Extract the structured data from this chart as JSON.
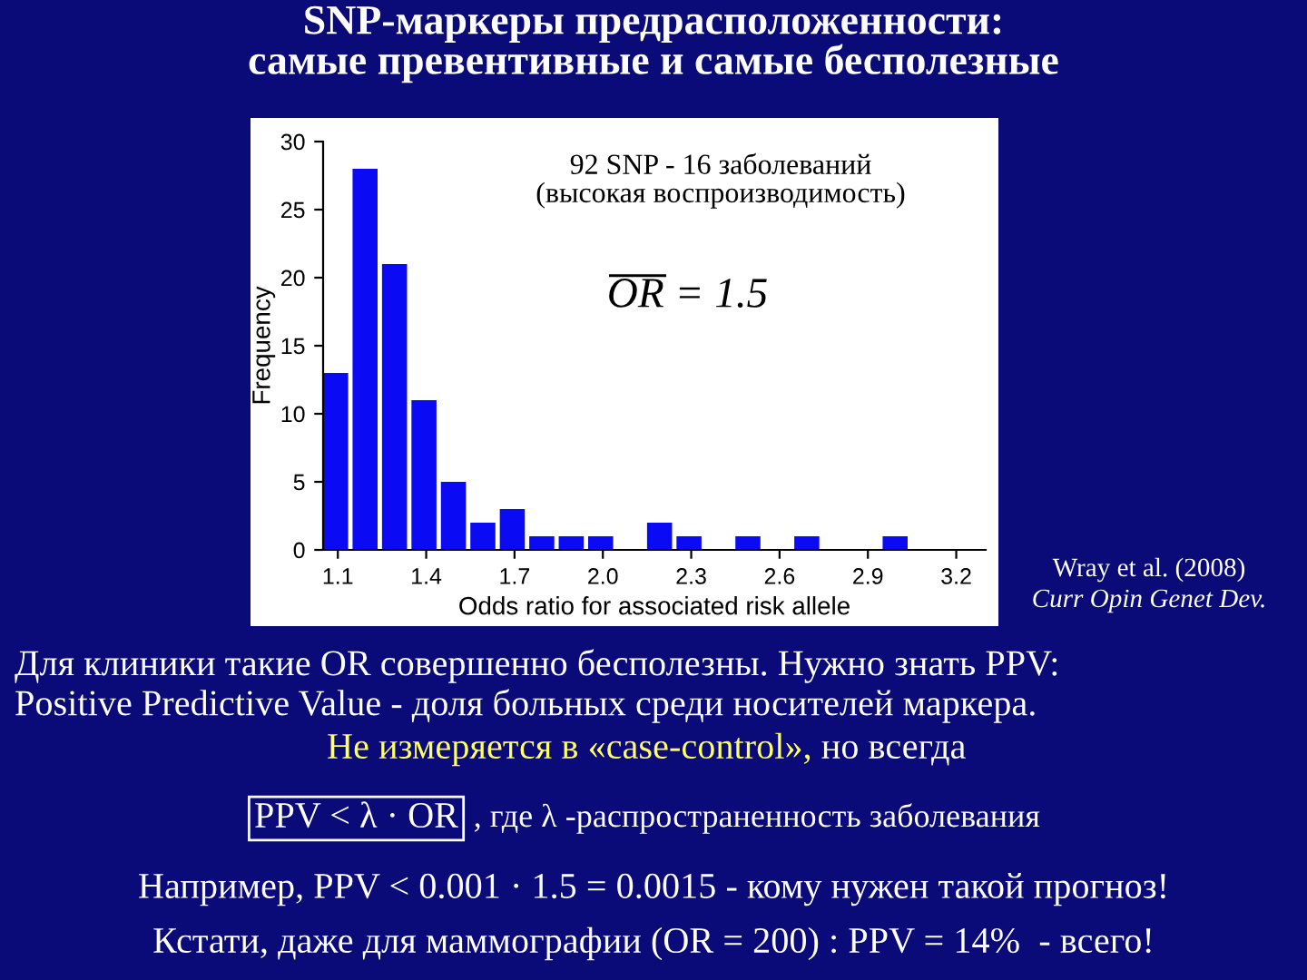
{
  "chart_data": {
    "type": "histogram",
    "title": "SNP-маркеры предрасположенности:\nсамые превентивные и самые бесполезные",
    "xlabel": "Odds ratio for associated risk allele",
    "ylabel": "Frequency",
    "bins": [
      1.05,
      1.15,
      1.25,
      1.35,
      1.45,
      1.55,
      1.65,
      1.75,
      1.85,
      1.95,
      2.05,
      2.15,
      2.25,
      2.35,
      2.45,
      2.55,
      2.65,
      2.75,
      2.85,
      2.95,
      3.05
    ],
    "values": [
      13,
      28,
      21,
      11,
      5,
      2,
      3,
      1,
      1,
      1,
      0,
      2,
      1,
      0,
      1,
      0,
      1,
      0,
      0,
      1
    ],
    "color": "#0a0af5",
    "xlim": [
      1.05,
      3.3
    ],
    "xticks": [
      1.1,
      1.4,
      1.7,
      {
        "value": 2,
        "label": "2.0"
      },
      2.3,
      2.6,
      2.9,
      3.2
    ],
    "ylim": [
      0,
      30
    ],
    "yticks": [
      0,
      5,
      10,
      15,
      20,
      25,
      30
    ],
    "grid": false,
    "annotations": [
      "92 SNP - 16 заболеваний\n(высокая воспроизводимость)",
      "OR = 1.5",
      "Wray et al. (2008)",
      "Curr Opin Genet Dev.",
      "Для клиники такие OR совершенно бесполезны. Нужно знать PPV:",
      "Positive Predictive Value - доля больных среди носителей маркера.",
      "Не измеряется в «case-control»,",
      " но всегда",
      "PPV < λ · OR",
      ", где λ -распространенность заболевания",
      "Например, PPV < 0.001 · 1.5 = 0.0015 - кому нужен такой прогноз!",
      "Кстати, даже для маммографии (OR = 200) : PPV = 14%  - всего!"
    ]
  }
}
